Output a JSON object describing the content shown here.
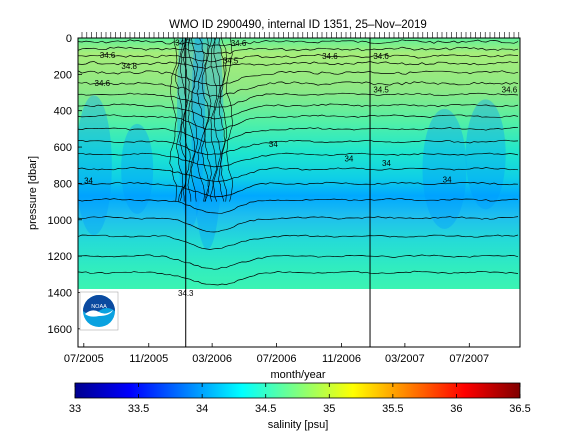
{
  "chart_data": {
    "type": "contour",
    "title": "WMO ID 2900490, internal ID 1351, 25–Nov–2019",
    "xlabel": "month/year",
    "ylabel": "pressure [dbar]",
    "x_tick_labels": [
      "07/2005",
      "11/2005",
      "03/2006",
      "07/2006",
      "11/2006",
      "03/2007",
      "07/2007"
    ],
    "x_ticks": [
      "2005-07-01",
      "2005-11-01",
      "2006-03-01",
      "2006-07-01",
      "2006-11-01",
      "2007-03-01",
      "2007-07-01"
    ],
    "xlim": [
      "2005-06-20",
      "2007-10-05"
    ],
    "y_ticks": [
      0,
      200,
      400,
      600,
      800,
      1000,
      1200,
      1400,
      1600
    ],
    "ylim": [
      1700,
      0
    ],
    "y_reversed": true,
    "data_extent_pressure_max": 1400,
    "vertical_markers": [
      "2006-01-10",
      "2006-12-25"
    ],
    "contour_labels": [
      {
        "text": "34.7",
        "x": "2006-01-05",
        "y": 40
      },
      {
        "text": "34.6",
        "x": "2006-04-20",
        "y": 45
      },
      {
        "text": "34.5",
        "x": "2006-04-05",
        "y": 140
      },
      {
        "text": "34.6",
        "x": "2005-08-15",
        "y": 110
      },
      {
        "text": "34.8",
        "x": "2005-09-25",
        "y": 170
      },
      {
        "text": "34.6",
        "x": "2005-08-05",
        "y": 265
      },
      {
        "text": "34.6",
        "x": "2006-10-10",
        "y": 115
      },
      {
        "text": "34.6",
        "x": "2007-01-15",
        "y": 115
      },
      {
        "text": "34.5",
        "x": "2007-01-15",
        "y": 300
      },
      {
        "text": "34.6",
        "x": "2007-09-15",
        "y": 300
      },
      {
        "text": "34",
        "x": "2006-06-25",
        "y": 600
      },
      {
        "text": "34",
        "x": "2006-11-15",
        "y": 680
      },
      {
        "text": "34",
        "x": "2007-01-25",
        "y": 705
      },
      {
        "text": "34",
        "x": "2007-05-20",
        "y": 795
      },
      {
        "text": "34.3",
        "x": "2006-01-10",
        "y": 1420
      },
      {
        "text": "34",
        "x": "2005-07-10",
        "y": 800
      }
    ],
    "colorbar": {
      "label": "salinity [psu]",
      "min": 33,
      "max": 36.5,
      "tick_labels": [
        "33",
        "33.5",
        "34",
        "34.5",
        "35",
        "35.5",
        "36",
        "36.5"
      ],
      "ticks": [
        33,
        33.5,
        34,
        34.5,
        35,
        35.5,
        36,
        36.5
      ],
      "colormap": "jet"
    },
    "grid": false,
    "legend": "none"
  },
  "logo": {
    "text": "NOAA",
    "colors": {
      "sky": "#0b4aa0",
      "sea": "#0aa2e0",
      "gull": "#ffffff"
    }
  },
  "colors": {
    "surface_band": "#8be87a",
    "mid_band": "#1ee6ce",
    "deep_band": "#0094ff",
    "bottom_band": "#3df5b0"
  }
}
